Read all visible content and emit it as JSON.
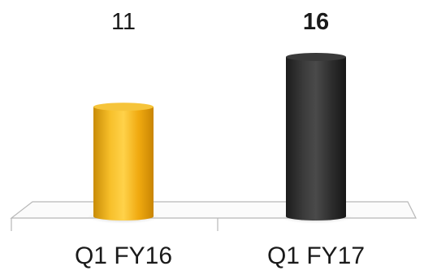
{
  "chart_data": {
    "type": "bar",
    "style": "3d-cylinder",
    "categories": [
      "Q1 FY16",
      "Q1 FY17"
    ],
    "values": [
      11,
      16
    ],
    "data_labels": [
      "11",
      "16"
    ],
    "bold_labels": [
      false,
      true
    ],
    "colors": [
      "#F2B01E",
      "#2F2F2F"
    ],
    "title": "",
    "xlabel": "",
    "ylabel": "",
    "ylim": [
      0,
      16
    ],
    "grid": false,
    "legend": "none"
  }
}
